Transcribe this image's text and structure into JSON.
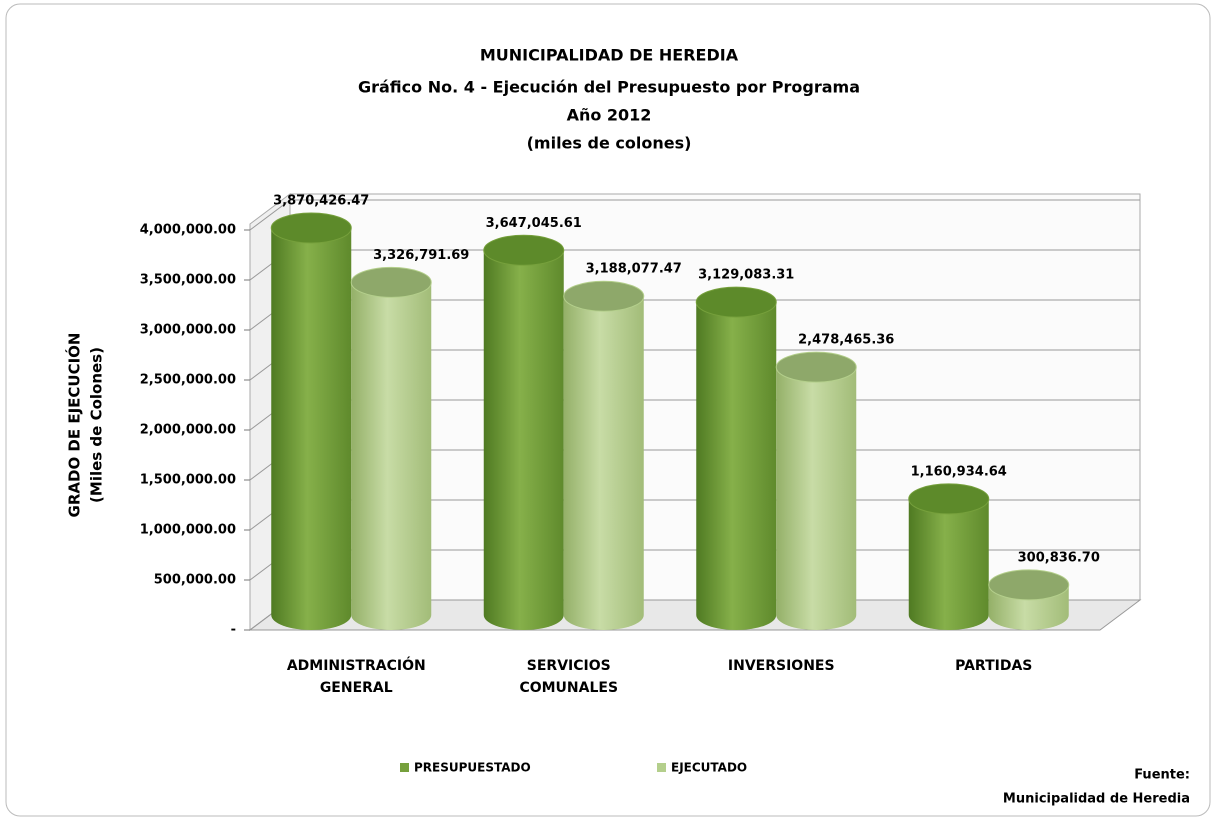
{
  "chart_data": {
    "type": "bar",
    "title": "MUNICIPALIDAD DE HEREDIA",
    "subtitle": [
      "Gráfico No. 4 - Ejecución del Presupuesto por Programa",
      "Año 2012",
      "(miles de colones)"
    ],
    "ylabel": [
      "GRADO DE EJECUCIÓN",
      "(Miles de Colones)"
    ],
    "categories": [
      "ADMINISTRACIÓN GENERAL",
      "SERVICIOS COMUNALES",
      "INVERSIONES",
      "PARTIDAS"
    ],
    "series": [
      {
        "name": "PRESUPUESTADO",
        "color": "#76a03c",
        "values": [
          3870426.47,
          3647045.61,
          3129083.31,
          1160934.64
        ],
        "value_labels": [
          "3,870,426.47",
          "3,647,045.61",
          "3,129,083.31",
          "1,160,934.64"
        ]
      },
      {
        "name": "EJECUTADO",
        "color": "#b4cf8c",
        "values": [
          3326791.69,
          3188077.47,
          2478465.36,
          300836.7
        ],
        "value_labels": [
          "3,326,791.69",
          "3,188,077.47",
          "2,478,465.36",
          "300,836.70"
        ]
      }
    ],
    "ylim": [
      0,
      4000000
    ],
    "yticks": [
      {
        "value": 0,
        "label": "-"
      },
      {
        "value": 500000,
        "label": "500,000.00"
      },
      {
        "value": 1000000,
        "label": "1,000,000.00"
      },
      {
        "value": 1500000,
        "label": "1,500,000.00"
      },
      {
        "value": 2000000,
        "label": "2,000,000.00"
      },
      {
        "value": 2500000,
        "label": "2,500,000.00"
      },
      {
        "value": 3000000,
        "label": "3,000,000.00"
      },
      {
        "value": 3500000,
        "label": "3,500,000.00"
      },
      {
        "value": 4000000,
        "label": "4,000,000.00"
      }
    ],
    "grid": true,
    "legend": "bottom",
    "source": [
      "Fuente:",
      "Municipalidad de Heredia"
    ]
  }
}
